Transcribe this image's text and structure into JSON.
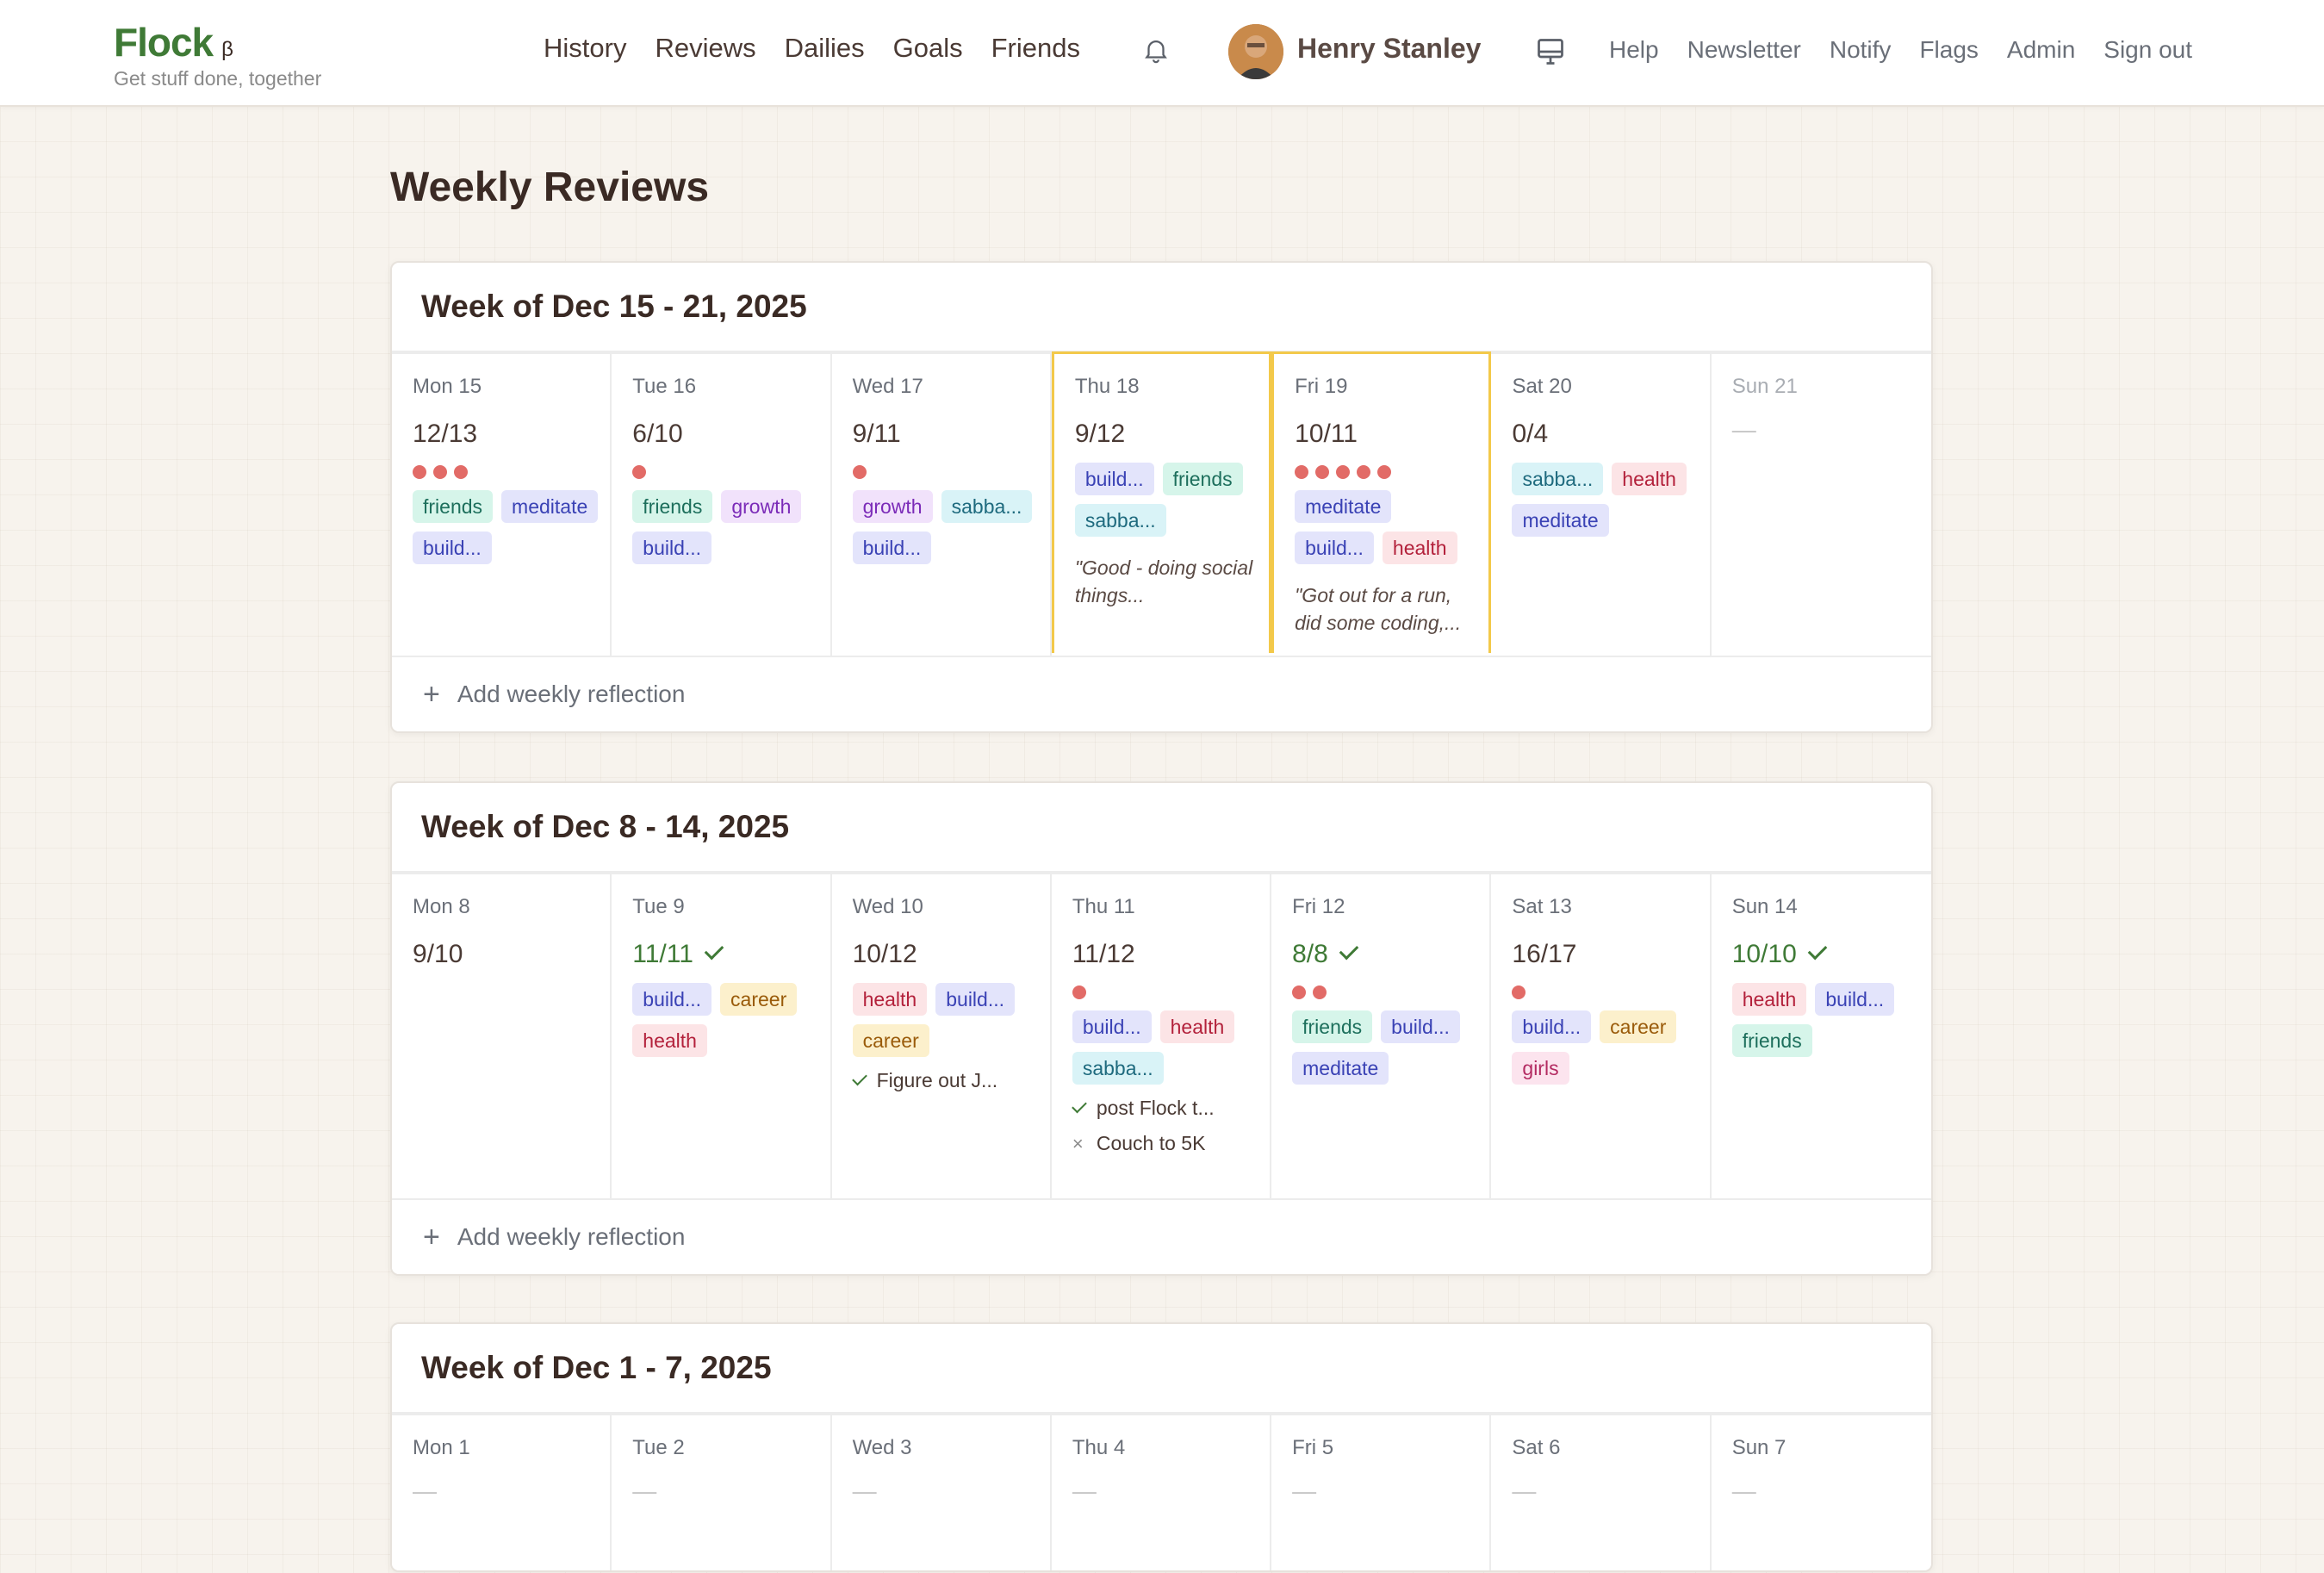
{
  "header": {
    "brand": "Flock",
    "beta": "β",
    "tagline": "Get stuff done, together",
    "nav": [
      "History",
      "Reviews",
      "Dailies",
      "Goals",
      "Friends"
    ],
    "user_name": "Henry Stanley",
    "secondary_nav": [
      "Help",
      "Newsletter",
      "Notify",
      "Flags",
      "Admin",
      "Sign out"
    ]
  },
  "page_title": "Weekly Reviews",
  "reflection_label": "Add weekly reflection",
  "weeks": [
    {
      "title": "Week of Dec 15 - 21, 2025",
      "days": [
        {
          "label": "Mon 15",
          "score": "12/13",
          "dots": 3,
          "tags": [
            [
              "friends",
              "friends"
            ],
            [
              "meditate",
              "meditate"
            ],
            [
              "build...",
              "build"
            ]
          ]
        },
        {
          "label": "Tue 16",
          "score": "6/10",
          "dots": 1,
          "tags": [
            [
              "friends",
              "friends"
            ],
            [
              "growth",
              "growth"
            ],
            [
              "build...",
              "build"
            ]
          ]
        },
        {
          "label": "Wed 17",
          "score": "9/11",
          "dots": 1,
          "tags": [
            [
              "growth",
              "growth"
            ],
            [
              "sabba...",
              "sabba"
            ],
            [
              "build...",
              "build"
            ]
          ]
        },
        {
          "label": "Thu 18",
          "score": "9/12",
          "dots": 0,
          "tags": [
            [
              "build...",
              "build"
            ],
            [
              "friends",
              "friends"
            ],
            [
              "sabba...",
              "sabba"
            ]
          ],
          "quote": "\"Good - doing social things..."
        },
        {
          "label": "Fri 19",
          "score": "10/11",
          "dots": 5,
          "tags": [
            [
              "meditate",
              "meditate"
            ],
            [
              "build...",
              "build"
            ],
            [
              "health",
              "health"
            ]
          ],
          "quote": "\"Got out for a run, did some coding,..."
        },
        {
          "label": "Sat 20",
          "score": "0/4",
          "dots": 0,
          "tags": [
            [
              "sabba...",
              "sabba"
            ],
            [
              "health",
              "health"
            ],
            [
              "meditate",
              "meditate"
            ]
          ]
        },
        {
          "label": "Sun 21",
          "score": "—",
          "empty": true
        }
      ]
    },
    {
      "title": "Week of Dec 8 - 14, 2025",
      "days": [
        {
          "label": "Mon 8",
          "score": "9/10",
          "dots": 0,
          "tags": []
        },
        {
          "label": "Tue 9",
          "score": "11/11",
          "done": true,
          "dots": 0,
          "tags": [
            [
              "build...",
              "build"
            ],
            [
              "career",
              "career"
            ],
            [
              "health",
              "health"
            ]
          ]
        },
        {
          "label": "Wed 10",
          "score": "10/12",
          "dots": 0,
          "tags": [
            [
              "health",
              "health"
            ],
            [
              "build...",
              "build"
            ],
            [
              "career",
              "career"
            ]
          ],
          "goals": [
            [
              "✓",
              "Figure out J..."
            ]
          ]
        },
        {
          "label": "Thu 11",
          "score": "11/12",
          "dots": 1,
          "tags": [
            [
              "build...",
              "build"
            ],
            [
              "health",
              "health"
            ],
            [
              "sabba...",
              "sabba"
            ]
          ],
          "goals": [
            [
              "✓",
              "post Flock t..."
            ],
            [
              "×",
              "Couch to 5K"
            ]
          ]
        },
        {
          "label": "Fri 12",
          "score": "8/8",
          "done": true,
          "dots": 2,
          "tags": [
            [
              "friends",
              "friends"
            ],
            [
              "build...",
              "build"
            ],
            [
              "meditate",
              "meditate"
            ]
          ]
        },
        {
          "label": "Sat 13",
          "score": "16/17",
          "dots": 1,
          "tags": [
            [
              "build...",
              "build"
            ],
            [
              "career",
              "career"
            ],
            [
              "girls",
              "girls"
            ]
          ]
        },
        {
          "label": "Sun 14",
          "score": "10/10",
          "done": true,
          "dots": 0,
          "tags": [
            [
              "health",
              "health"
            ],
            [
              "build...",
              "build"
            ],
            [
              "friends",
              "friends"
            ]
          ]
        }
      ]
    },
    {
      "title": "Week of Dec 1 - 7, 2025",
      "days": [
        {
          "label": "Mon 1",
          "score": "—",
          "empty": true
        },
        {
          "label": "Tue 2",
          "score": "—",
          "empty": true
        },
        {
          "label": "Wed 3",
          "score": "—",
          "empty": true
        },
        {
          "label": "Thu 4",
          "score": "—",
          "empty": true
        },
        {
          "label": "Fri 5",
          "score": "—",
          "empty": true
        },
        {
          "label": "Sat 6",
          "score": "—",
          "empty": true
        },
        {
          "label": "Sun 7",
          "score": "—",
          "empty": true
        }
      ]
    }
  ]
}
